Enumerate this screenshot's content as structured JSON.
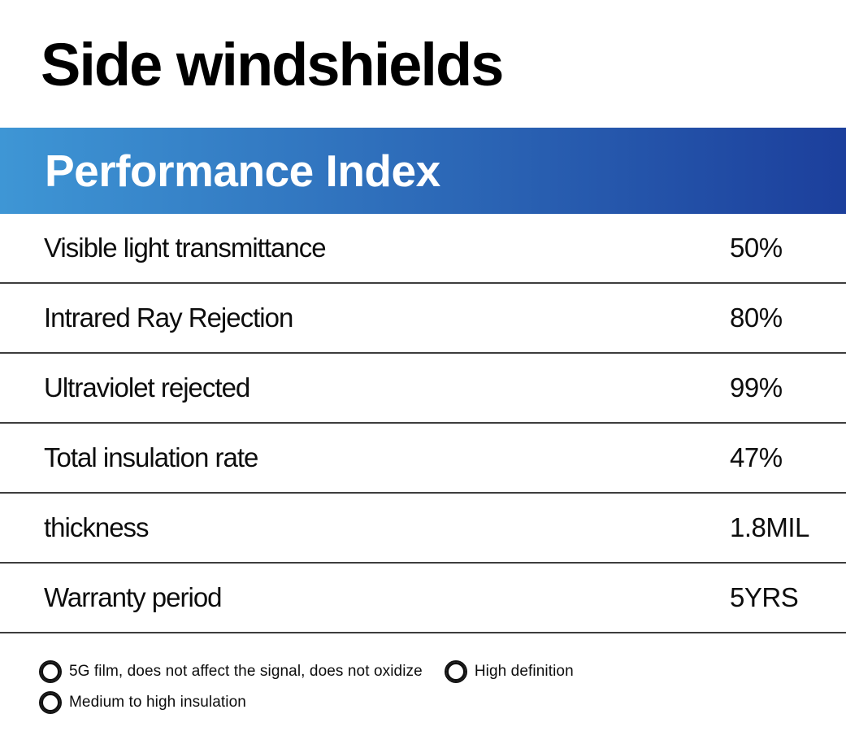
{
  "page": {
    "title": "Side windshields"
  },
  "header": {
    "title": "Performance Index",
    "gradient_left": "#3e96d5",
    "gradient_right": "#1c3f9c",
    "text_color": "#ffffff"
  },
  "table": {
    "rows": [
      {
        "label": "Visible light transmittance",
        "value": "50%"
      },
      {
        "label": "Intrared Ray Rejection",
        "value": "80%"
      },
      {
        "label": "Ultraviolet rejected",
        "value": "99%"
      },
      {
        "label": "Total insulation rate",
        "value": "47%"
      },
      {
        "label": "thickness",
        "value": "1.8MIL"
      },
      {
        "label": "Warranty period",
        "value": "5YRS"
      }
    ]
  },
  "features": {
    "icon": "double-circle-icon",
    "items": [
      "5G film, does not affect the signal, does not oxidize",
      "High definition",
      "Medium to high insulation"
    ]
  }
}
